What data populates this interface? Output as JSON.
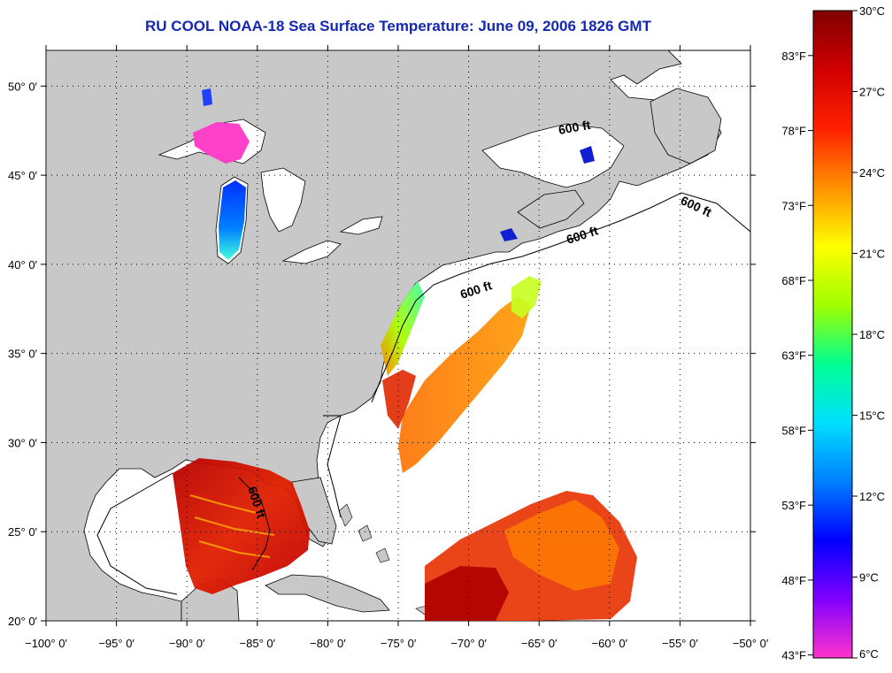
{
  "title": "RU COOL  NOAA-18  Sea Surface Temperature:  June 09, 2006 1826 GMT",
  "map": {
    "lon_range": [
      -100,
      -50
    ],
    "lat_range": [
      20,
      52
    ],
    "lon_ticks": [
      "−100° 0′",
      "−95° 0′",
      "−90° 0′",
      "−85° 0′",
      "−80° 0′",
      "−75° 0′",
      "−70° 0′",
      "−65° 0′",
      "−60° 0′",
      "−55° 0′",
      "−50° 0′"
    ],
    "lat_ticks": [
      "20° 0′",
      "25° 0′",
      "30° 0′",
      "35° 0′",
      "40° 0′",
      "45° 0′",
      "50° 0′"
    ],
    "contour_label": "600 ft",
    "grid": "dotted",
    "land_color": "#c8c8c8",
    "ocean_color": "#ffffff"
  },
  "colorbar": {
    "range_c": [
      6,
      30
    ],
    "celsius_labels": [
      "30°C",
      "27°C",
      "24°C",
      "21°C",
      "18°C",
      "15°C",
      "12°C",
      "9°C",
      "6°C"
    ],
    "fahrenheit_labels": [
      "83°F",
      "78°F",
      "73°F",
      "68°F",
      "63°F",
      "58°F",
      "53°F",
      "48°F",
      "43°F"
    ],
    "colors": [
      "#ff33cc",
      "#8000ff",
      "#0000ff",
      "#0080ff",
      "#00e0ff",
      "#00ff90",
      "#a0ff00",
      "#ffff00",
      "#ff9000",
      "#ff2000",
      "#d00000",
      "#800000"
    ]
  }
}
